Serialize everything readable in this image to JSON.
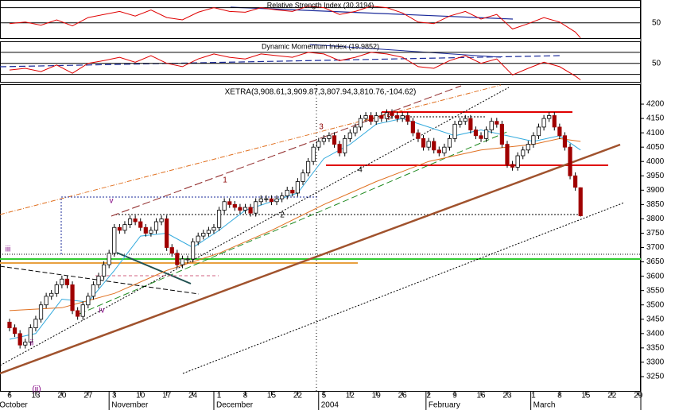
{
  "chart_data": {
    "type": "candlestick",
    "title": "XETRA(3,908.61,3,909.87,3,807.94,3,810.76,-104.62)",
    "xlim": [
      -1.82,
      120.5
    ],
    "xticks": [
      {
        "value": 0,
        "label": "6"
      },
      {
        "value": 5,
        "label": "13"
      },
      {
        "value": 10,
        "label": "20"
      },
      {
        "value": 15,
        "label": "27"
      },
      {
        "value": 20,
        "label": "3"
      },
      {
        "value": 25,
        "label": "10"
      },
      {
        "value": 30,
        "label": "17"
      },
      {
        "value": 35,
        "label": "24"
      },
      {
        "value": 40,
        "label": "1"
      },
      {
        "value": 45,
        "label": "8"
      },
      {
        "value": 50,
        "label": "15"
      },
      {
        "value": 55,
        "label": "22"
      },
      {
        "value": 60,
        "label": "5"
      },
      {
        "value": 65,
        "label": "12"
      },
      {
        "value": 70,
        "label": "19"
      },
      {
        "value": 75,
        "label": "26"
      },
      {
        "value": 80,
        "label": "2"
      },
      {
        "value": 85,
        "label": "9"
      },
      {
        "value": 90,
        "label": "16"
      },
      {
        "value": 95,
        "label": "23"
      },
      {
        "value": 100,
        "label": "1"
      },
      {
        "value": 105,
        "label": "8"
      },
      {
        "value": 110,
        "label": "15"
      },
      {
        "value": 115,
        "label": "22"
      },
      {
        "value": 120,
        "label": "29"
      }
    ],
    "month_ticks": [
      {
        "value": -2.4,
        "label": "October"
      },
      {
        "value": 19,
        "label": "November"
      },
      {
        "value": 39,
        "label": "December"
      },
      {
        "value": 59,
        "label": "2004"
      },
      {
        "value": 79.5,
        "label": "February"
      },
      {
        "value": 99.5,
        "label": "March"
      }
    ],
    "ylim": [
      3200,
      4250
    ],
    "yticks": [
      3250,
      3300,
      3350,
      3400,
      3450,
      3500,
      3550,
      3600,
      3650,
      3700,
      3750,
      3800,
      3850,
      3900,
      3950,
      4000,
      4050,
      4100,
      4150,
      4200
    ],
    "up_color": "#ffffff",
    "down_color": "#a00000",
    "open": [
      3440,
      3420,
      3400,
      3360,
      3370,
      3420,
      3450,
      3500,
      3530,
      3540,
      3570,
      3590,
      3570,
      3480,
      3460,
      3500,
      3530,
      3570,
      3600,
      3640,
      3680,
      3770,
      3760,
      3780,
      3800,
      3790,
      3770,
      3750,
      3760,
      3790,
      3800,
      3700,
      3680,
      3640,
      3660,
      3660,
      3720,
      3740,
      3750,
      3760,
      3770,
      3830,
      3860,
      3850,
      3840,
      3830,
      3840,
      3820,
      3860,
      3870,
      3870,
      3860,
      3870,
      3880,
      3900,
      3890,
      3930,
      3960,
      4000,
      4050,
      4070,
      4080,
      4090,
      4060,
      4030,
      4080,
      4100,
      4120,
      4150,
      4160,
      4140,
      4160,
      4150,
      4170,
      4160,
      4150,
      4160,
      4140,
      4100,
      4080,
      4050,
      4070,
      4040,
      4030,
      4050,
      4080,
      4130,
      4140,
      4150,
      4110,
      4090,
      4080,
      4110,
      4140,
      4130,
      4060,
      3990,
      3980,
      4020,
      4040,
      4060,
      4090,
      4120,
      4150,
      4160,
      4120,
      4090,
      4050,
      3950,
      3908.61
    ],
    "high": [
      3452,
      3432,
      3412,
      3382,
      3432,
      3462,
      3512,
      3542,
      3552,
      3582,
      3602,
      3602,
      3582,
      3492,
      3512,
      3542,
      3582,
      3612,
      3652,
      3692,
      3782,
      3782,
      3792,
      3812,
      3812,
      3802,
      3782,
      3772,
      3802,
      3812,
      3812,
      3712,
      3692,
      3672,
      3672,
      3732,
      3752,
      3762,
      3772,
      3782,
      3842,
      3872,
      3872,
      3862,
      3852,
      3852,
      3852,
      3872,
      3882,
      3882,
      3882,
      3882,
      3892,
      3912,
      3912,
      3942,
      3972,
      4012,
      4062,
      4082,
      4092,
      4102,
      4102,
      4072,
      4092,
      4112,
      4132,
      4162,
      4172,
      4172,
      4172,
      4172,
      4182,
      4182,
      4172,
      4172,
      4172,
      4152,
      4112,
      4092,
      4082,
      4082,
      4052,
      4062,
      4092,
      4142,
      4152,
      4162,
      4162,
      4122,
      4102,
      4122,
      4152,
      4152,
      4142,
      4072,
      4002,
      4032,
      4052,
      4072,
      4102,
      4132,
      4162,
      4172,
      4172,
      4132,
      4102,
      4062,
      3962,
      3909.87
    ],
    "low": [
      3408,
      3388,
      3348,
      3348,
      3358,
      3408,
      3438,
      3488,
      3518,
      3528,
      3558,
      3558,
      3468,
      3448,
      3448,
      3488,
      3518,
      3558,
      3588,
      3628,
      3668,
      3748,
      3748,
      3768,
      3778,
      3758,
      3738,
      3738,
      3748,
      3778,
      3688,
      3668,
      3628,
      3628,
      3648,
      3648,
      3708,
      3728,
      3738,
      3748,
      3758,
      3818,
      3838,
      3828,
      3818,
      3818,
      3808,
      3808,
      3848,
      3858,
      3848,
      3848,
      3858,
      3868,
      3878,
      3878,
      3918,
      3948,
      3988,
      4038,
      4058,
      4068,
      4048,
      4018,
      4018,
      4068,
      4088,
      4108,
      4138,
      4128,
      4128,
      4138,
      4138,
      4148,
      4138,
      4138,
      4128,
      4088,
      4068,
      4038,
      4038,
      4028,
      4018,
      4018,
      4038,
      4068,
      4118,
      4128,
      4098,
      4078,
      4068,
      4068,
      4098,
      4118,
      4048,
      3978,
      3968,
      3968,
      4008,
      4028,
      4048,
      4078,
      4108,
      4138,
      4108,
      4078,
      4038,
      3938,
      3898,
      3807.94
    ],
    "close": [
      3420,
      3400,
      3360,
      3370,
      3420,
      3450,
      3500,
      3530,
      3540,
      3570,
      3590,
      3570,
      3480,
      3460,
      3500,
      3530,
      3570,
      3600,
      3640,
      3680,
      3770,
      3760,
      3780,
      3800,
      3790,
      3770,
      3750,
      3760,
      3790,
      3800,
      3700,
      3680,
      3640,
      3660,
      3660,
      3720,
      3740,
      3750,
      3760,
      3770,
      3830,
      3860,
      3850,
      3840,
      3830,
      3840,
      3820,
      3860,
      3870,
      3870,
      3860,
      3870,
      3880,
      3900,
      3890,
      3930,
      3960,
      4000,
      4050,
      4070,
      4080,
      4090,
      4060,
      4030,
      4080,
      4100,
      4120,
      4150,
      4160,
      4140,
      4160,
      4150,
      4170,
      4160,
      4150,
      4160,
      4140,
      4100,
      4080,
      4050,
      4070,
      4040,
      4030,
      4050,
      4080,
      4130,
      4140,
      4150,
      4110,
      4090,
      4080,
      4110,
      4140,
      4130,
      4060,
      3990,
      3980,
      4020,
      4040,
      4060,
      4090,
      4120,
      4150,
      4160,
      4120,
      4090,
      4050,
      3950,
      3910,
      3810.76
    ],
    "moving_averages": [
      {
        "color": "#33aadd",
        "x": [
          0,
          5,
          10,
          15,
          20,
          25,
          30,
          35,
          40,
          45,
          50,
          55,
          60,
          65,
          70,
          75,
          80,
          85,
          90,
          95,
          100,
          105,
          109
        ],
        "values": [
          3380,
          3400,
          3520,
          3510,
          3620,
          3740,
          3750,
          3700,
          3760,
          3830,
          3860,
          3890,
          4010,
          4060,
          4130,
          4150,
          4120,
          4090,
          4110,
          4090,
          4070,
          4090,
          4040
        ]
      },
      {
        "color": "#e07020",
        "x": [
          0,
          10,
          20,
          30,
          40,
          50,
          60,
          70,
          80,
          90,
          100,
          105,
          109
        ],
        "values": [
          3480,
          3490,
          3540,
          3620,
          3680,
          3760,
          3850,
          3930,
          4000,
          4040,
          4060,
          4080,
          4070
        ]
      }
    ],
    "annotations": [
      {
        "text": "1",
        "color": "#8b0000"
      },
      {
        "text": "2",
        "color": "#000000"
      },
      {
        "text": "3",
        "color": "#8b0000"
      },
      {
        "text": "4",
        "color": "#000000"
      },
      {
        "text": "5",
        "color": "#8b0000"
      },
      {
        "text": "iii",
        "color": "#800080"
      },
      {
        "text": "v",
        "color": "#800080"
      },
      {
        "text": "iv",
        "color": "#800080"
      },
      {
        "text": "ii",
        "color": "#800080"
      },
      {
        "text": "(ii)",
        "color": "#800080"
      }
    ],
    "indicators": [
      {
        "name": "Relative Strength Index (30.3194)",
        "color": "#e00000",
        "ylim": [
          30,
          80
        ],
        "yticks": [
          50
        ],
        "levels": [
          70
        ],
        "x": [
          0,
          3,
          6,
          9,
          12,
          15,
          18,
          21,
          24,
          27,
          30,
          33,
          36,
          39,
          42,
          45,
          48,
          51,
          54,
          57,
          60,
          63,
          66,
          69,
          72,
          75,
          78,
          81,
          84,
          87,
          90,
          93,
          96,
          99,
          102,
          105,
          108,
          109
        ],
        "values": [
          49,
          51,
          47,
          54,
          46,
          57,
          61,
          65,
          59,
          67,
          57,
          54,
          64,
          70,
          65,
          64,
          70,
          67,
          65,
          72,
          70,
          61,
          65,
          72,
          70,
          63,
          51,
          49,
          59,
          65,
          55,
          61,
          42,
          49,
          57,
          51,
          38,
          30.3194
        ]
      },
      {
        "name": "Dynamic Momentum Index (19.9852)",
        "color": "#e00000",
        "ylim": [
          15,
          90
        ],
        "yticks": [
          50
        ],
        "levels": [
          70,
          30
        ],
        "x": [
          0,
          3,
          6,
          9,
          12,
          15,
          18,
          21,
          24,
          27,
          30,
          33,
          36,
          39,
          42,
          45,
          48,
          51,
          54,
          57,
          60,
          63,
          66,
          69,
          72,
          75,
          78,
          81,
          84,
          87,
          90,
          93,
          96,
          99,
          102,
          105,
          108,
          109
        ],
        "values": [
          38,
          41,
          35,
          47,
          32,
          50,
          55,
          61,
          52,
          64,
          50,
          44,
          58,
          67,
          61,
          58,
          67,
          64,
          61,
          70,
          67,
          55,
          61,
          70,
          67,
          61,
          44,
          41,
          55,
          64,
          50,
          58,
          29,
          41,
          52,
          44,
          27,
          19.9852
        ]
      }
    ]
  }
}
